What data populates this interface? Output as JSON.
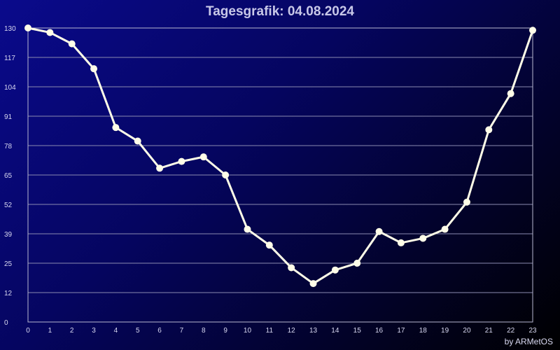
{
  "chart_data": {
    "type": "line",
    "title": "Tagesgrafik: 04.08.2024",
    "x": [
      0,
      1,
      2,
      3,
      4,
      5,
      6,
      7,
      8,
      9,
      10,
      11,
      12,
      13,
      14,
      15,
      16,
      17,
      18,
      19,
      20,
      21,
      22,
      23
    ],
    "series": [
      {
        "values": [
          130,
          128,
          123,
          112,
          86,
          80,
          68,
          71,
          73,
          65,
          41,
          34,
          24,
          17,
          23,
          26,
          40,
          35,
          37,
          41,
          53,
          85,
          101,
          129
        ]
      }
    ],
    "ylim": [
      0,
      130
    ],
    "yticks": [
      "0",
      "12",
      "25",
      "39",
      "52",
      "65",
      "78",
      "91",
      "104",
      "117",
      "130"
    ],
    "xticks": [
      "0",
      "1",
      "2",
      "3",
      "4",
      "5",
      "6",
      "7",
      "8",
      "9",
      "10",
      "11",
      "12",
      "13",
      "14",
      "15",
      "16",
      "17",
      "18",
      "19",
      "20",
      "21",
      "22",
      "23"
    ],
    "grid": true,
    "line_color": "#fffde8",
    "grid_color": "#8a8ab0"
  },
  "footer": {
    "credit": "by ARMetOS"
  }
}
